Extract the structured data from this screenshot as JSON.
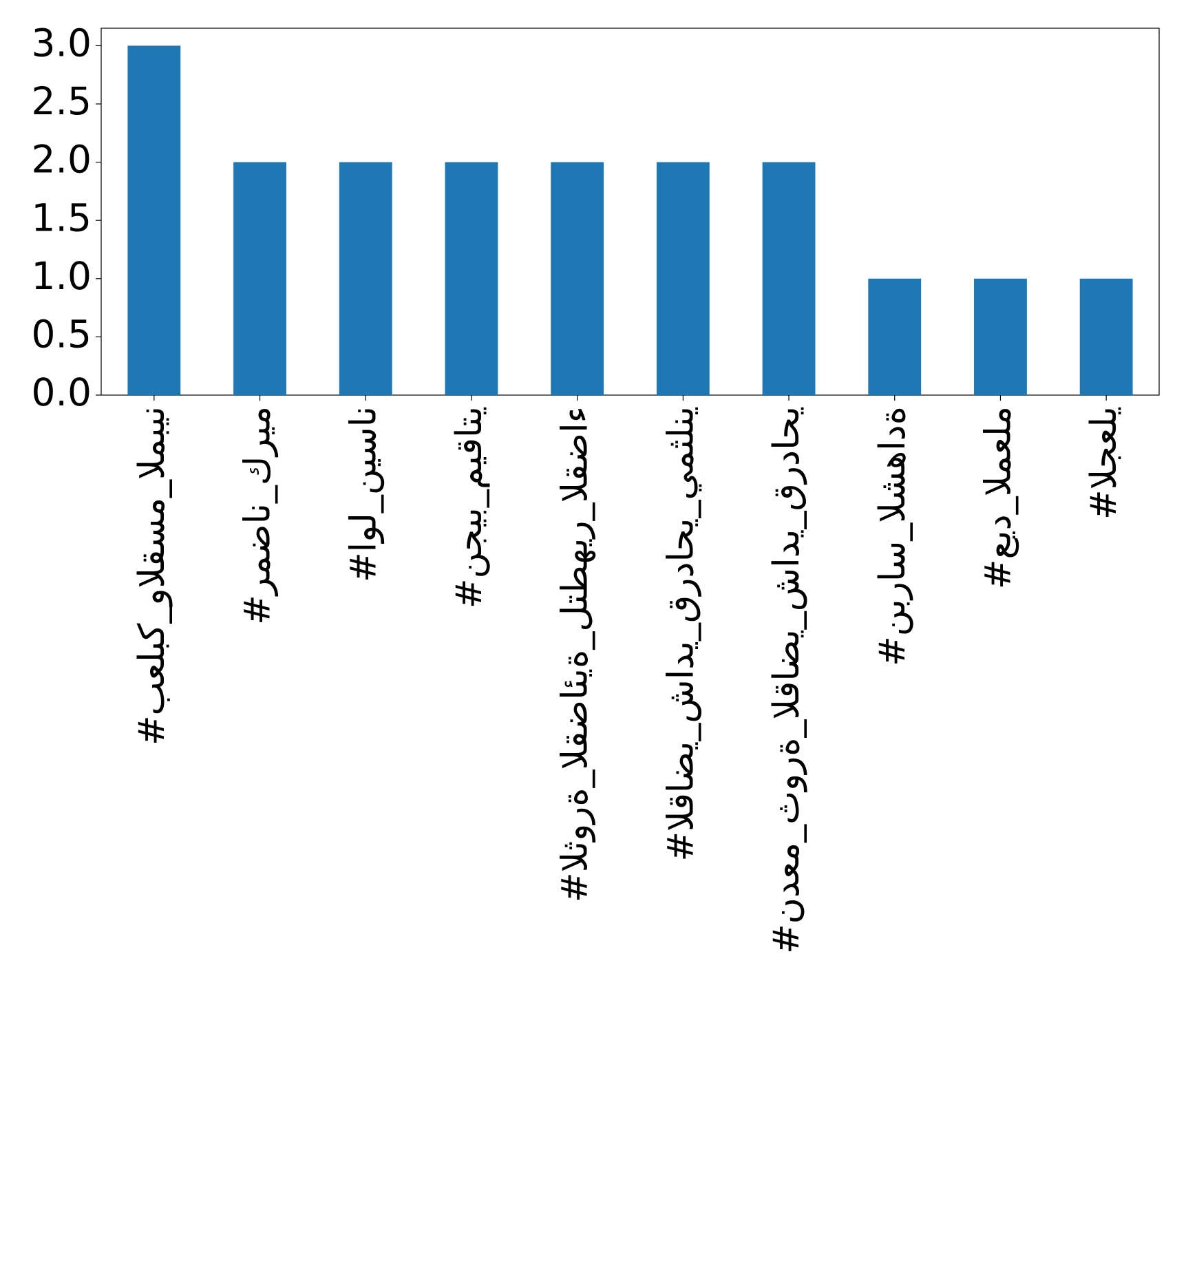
{
  "chart_data": {
    "type": "bar",
    "categories": [
      "#بعلبك_والقسم_المبين",
      "#رمضان_كريم",
      "#اول_نيسان",
      "#نجيب_ميقاتي",
      "#الثورة_القضائية_لتطهير_القضاء",
      "#القاضي_شادي_قرداحي_يمثلني",
      "#ندعم_ثورة_القاضي_شادي_قرداحي",
      "#نبراس_الشهادة",
      "#عيد_المعلم",
      "#الجعلي"
    ],
    "values": [
      3,
      2,
      2,
      2,
      2,
      2,
      2,
      1,
      1,
      1
    ],
    "color": "#1f77b4",
    "ylim": [
      0,
      3.15
    ],
    "yticks": [
      {
        "value": 0,
        "label": "0.0"
      },
      0.5,
      {
        "value": 1,
        "label": "1.0"
      },
      1.5,
      {
        "value": 2,
        "label": "2.0"
      },
      2.5,
      {
        "value": 3,
        "label": "3.0"
      }
    ],
    "grid": false
  }
}
